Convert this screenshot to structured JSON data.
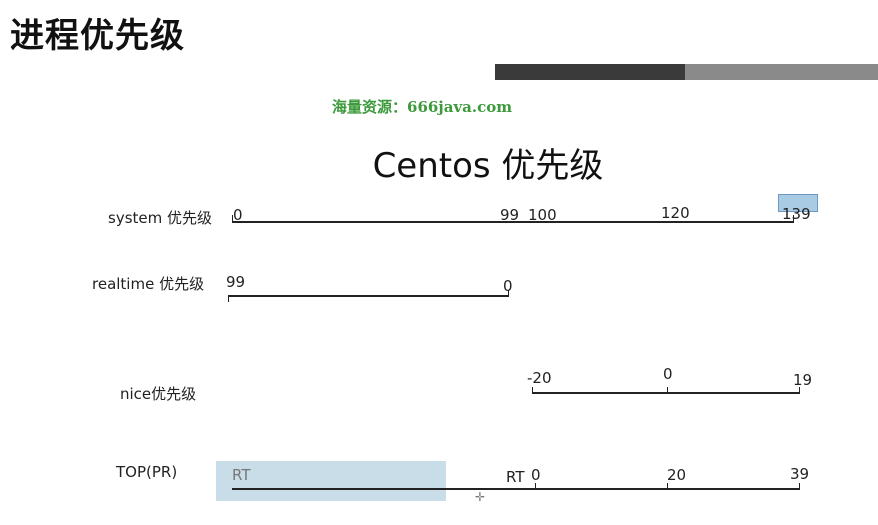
{
  "page_title": "进程优先级",
  "watermark": "海量资源：666java.com",
  "diagram_title": "Centos 优先级",
  "rows": {
    "system": {
      "label": "system 优先级",
      "values": [
        "0",
        "99",
        "100",
        "120",
        "139"
      ],
      "highlighted": "139"
    },
    "realtime": {
      "label": "realtime 优先级",
      "values": [
        "99",
        "0"
      ]
    },
    "nice": {
      "label": "nice优先级",
      "values": [
        "-20",
        "0",
        "19"
      ]
    },
    "top": {
      "label": "TOP(PR)",
      "values": [
        "RT",
        "RT",
        "0",
        "20",
        "39"
      ],
      "highlighted": "RT"
    }
  },
  "colors": {
    "highlight": "#a9cbe3",
    "watermark": "#3c9a3c",
    "header_bar_dark": "#3a3a3a",
    "header_bar_light": "#8a8a8a"
  }
}
